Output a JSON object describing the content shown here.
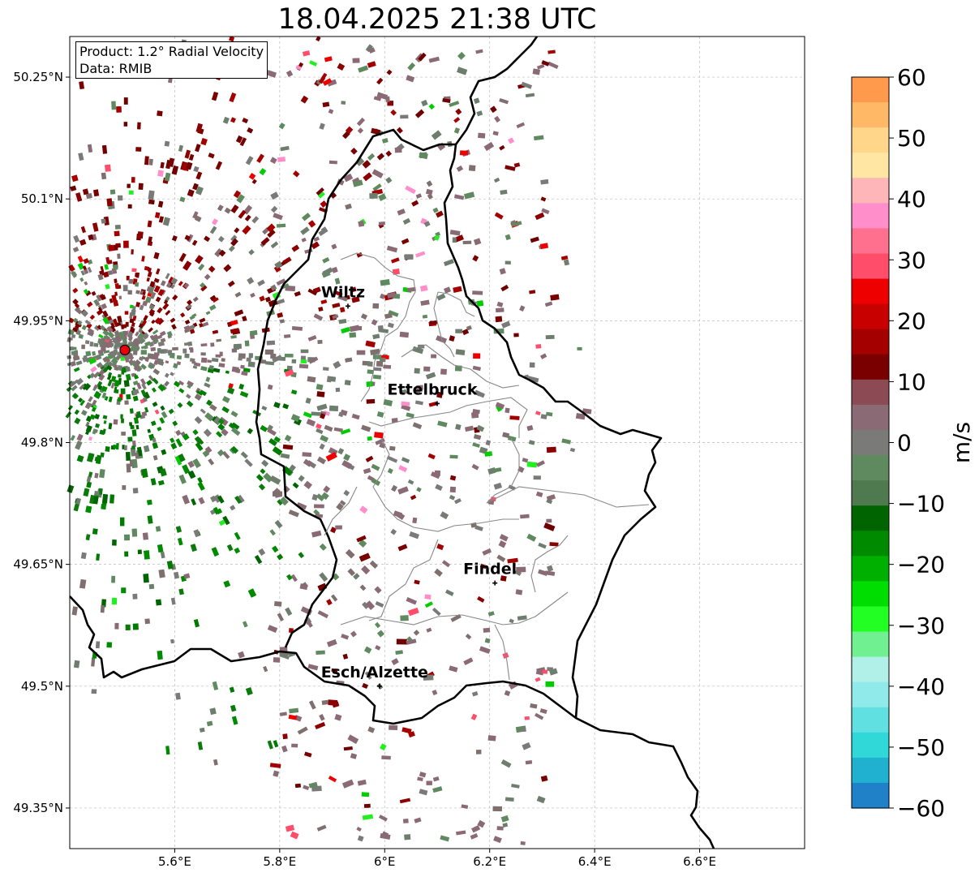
{
  "title": "18.04.2025 21:38 UTC",
  "info_box": {
    "product": "Product: 1.2° Radial Velocity",
    "data": "Data: RMIB"
  },
  "map": {
    "lon_range": [
      5.4,
      6.8
    ],
    "lat_range": [
      49.3,
      50.3
    ],
    "x_ticks": [
      "5.6°E",
      "5.8°E",
      "6°E",
      "6.2°E",
      "6.4°E",
      "6.6°E"
    ],
    "y_ticks": [
      "50.25°N",
      "50.1°N",
      "49.95°N",
      "49.8°N",
      "49.65°N",
      "49.5°N",
      "49.35°N"
    ],
    "grid": true,
    "radar_site": {
      "lon": 5.505,
      "lat": 49.914,
      "color": "#e8000b"
    },
    "cities": [
      {
        "name": "Wiltz",
        "lon": 5.93,
        "lat": 49.968
      },
      {
        "name": "Ettelbruck",
        "lon": 6.1,
        "lat": 49.848
      },
      {
        "name": "Findel",
        "lon": 6.21,
        "lat": 49.627
      },
      {
        "name": "Esch/Alzette",
        "lon": 5.99,
        "lat": 49.5
      }
    ]
  },
  "colorbar": {
    "label": "m/s",
    "ticks": [
      "60",
      "50",
      "40",
      "30",
      "20",
      "10",
      "0",
      "−10",
      "−20",
      "−30",
      "−40",
      "−50",
      "−60"
    ],
    "range": [
      -60,
      60
    ],
    "colors_top_to_bottom": [
      "#ff9a4d",
      "#ffb866",
      "#ffd68a",
      "#ffe6a3",
      "#ffb6b9",
      "#ff8ecb",
      "#ff6f8e",
      "#ff4d6a",
      "#ee0000",
      "#c80000",
      "#a50000",
      "#7a0000",
      "#8b4a54",
      "#8a6a74",
      "#7a7a78",
      "#5f8a60",
      "#4f7a50",
      "#006400",
      "#008a00",
      "#00b000",
      "#00dd00",
      "#22ff22",
      "#70f090",
      "#b0f0e8",
      "#90eaea",
      "#60e0e0",
      "#30d8d8",
      "#20b0d0",
      "#2080c8"
    ]
  }
}
